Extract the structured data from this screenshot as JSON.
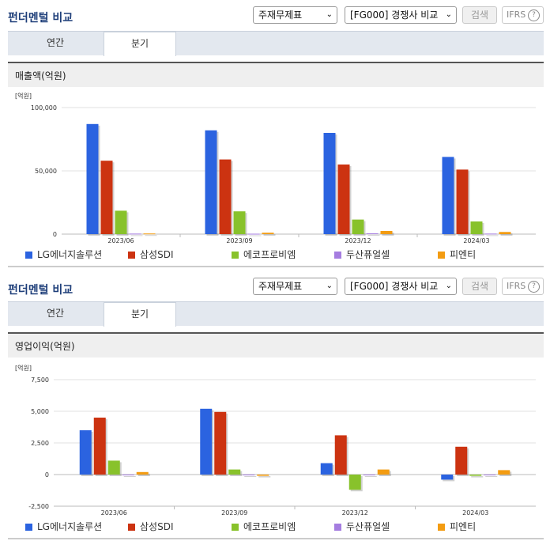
{
  "panels": [
    {
      "title": "펀더멘털 비교",
      "select1": "주재무제표",
      "select2": "[FG000] 경쟁사 비교",
      "search": "검색",
      "ifrs": "IFRS",
      "tabs": [
        "연간",
        "분기"
      ],
      "active_tab": 1,
      "section": "매출액(억원)"
    },
    {
      "title": "펀더멘털 비교",
      "select1": "주재무제표",
      "select2": "[FG000] 경쟁사 비교",
      "search": "검색",
      "ifrs": "IFRS",
      "tabs": [
        "연간",
        "분기"
      ],
      "active_tab": 1,
      "section": "영업이익(억원)"
    }
  ],
  "chart_data": [
    {
      "type": "bar",
      "ylabel": "[억원]",
      "categories": [
        "2023/06",
        "2023/09",
        "2023/12",
        "2024/03"
      ],
      "ylim": [
        0,
        100000
      ],
      "yticks": [
        0,
        50000,
        100000
      ],
      "ytick_labels": [
        "0",
        "50,000",
        "100,000"
      ],
      "grid": true,
      "series": [
        {
          "name": "LG에너지솔루션",
          "color": "#2b63e0",
          "values": [
            87000,
            82000,
            80000,
            61000
          ]
        },
        {
          "name": "삼성SDI",
          "color": "#cc3311",
          "values": [
            58000,
            59000,
            55000,
            51000
          ]
        },
        {
          "name": "에코프로비엠",
          "color": "#88c22b",
          "values": [
            18500,
            18000,
            11500,
            10000
          ]
        },
        {
          "name": "두산퓨얼셀",
          "color": "#a57de0",
          "values": [
            400,
            300,
            600,
            400
          ]
        },
        {
          "name": "피엔티",
          "color": "#f39c12",
          "values": [
            500,
            1100,
            2500,
            1700
          ]
        }
      ]
    },
    {
      "type": "bar",
      "ylabel": "[억원]",
      "categories": [
        "2023/06",
        "2023/09",
        "2023/12",
        "2024/03"
      ],
      "ylim": [
        -2500,
        7500
      ],
      "yticks": [
        -2500,
        0,
        2500,
        5000,
        7500
      ],
      "ytick_labels": [
        "-2,500",
        "0",
        "2,500",
        "5,000",
        "7,500"
      ],
      "grid": true,
      "series": [
        {
          "name": "LG에너지솔루션",
          "color": "#2b63e0",
          "values": [
            3500,
            5200,
            900,
            -400
          ]
        },
        {
          "name": "삼성SDI",
          "color": "#cc3311",
          "values": [
            4500,
            4950,
            3100,
            2200
          ]
        },
        {
          "name": "에코프로비엠",
          "color": "#88c22b",
          "values": [
            1100,
            400,
            -1200,
            -100
          ]
        },
        {
          "name": "두산퓨얼셀",
          "color": "#a57de0",
          "values": [
            0,
            0,
            0,
            0
          ]
        },
        {
          "name": "피엔티",
          "color": "#f39c12",
          "values": [
            200,
            -100,
            400,
            350
          ]
        }
      ]
    }
  ]
}
